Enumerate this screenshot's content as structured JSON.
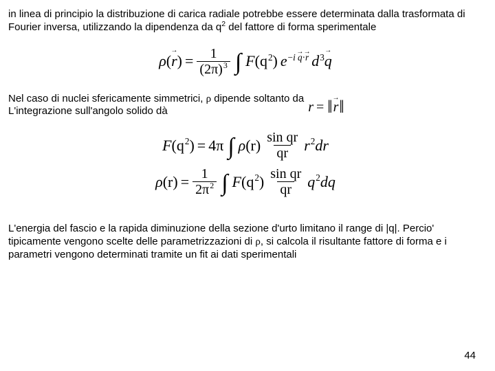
{
  "colors": {
    "background": "#ffffff",
    "text": "#000000"
  },
  "typography": {
    "body_family": "Arial",
    "body_size_pt": 11,
    "eq_family": "Times New Roman",
    "eq_size_pt": 16
  },
  "para1_a": "in linea di principio la distribuzione di carica radiale potrebbe essere determinata dalla trasformata di Fourier inversa, utilizzando la dipendenza da q",
  "para1_sup": "2",
  "para1_b": " del fattore di forma sperimentale",
  "eq1": {
    "lhs_rho": "ρ",
    "lhs_arg": "r",
    "frac_num": "1",
    "frac_den_base": "(2π)",
    "frac_den_exp": "3",
    "int": "∫",
    "F": "F",
    "F_arg_base": "(q",
    "F_arg_exp": "2",
    "F_arg_close": ")",
    "e": "e",
    "e_exp": "−i q·r",
    "d3": "d",
    "d3_exp": "3",
    "d3_var": "q"
  },
  "para2_a": "Nel caso di nuclei sfericamente simmetrici, ",
  "rho_sym": "ρ",
  "para2_b": " dipende soltanto da",
  "para2_line2": "L'integrazione sull'angolo solido dà",
  "norm": {
    "r": "r",
    "eq": "=",
    "bar": "‖",
    "rvec": "r"
  },
  "eq2": {
    "lhs_F": "F",
    "lhs_arg_base": "(q",
    "lhs_arg_exp": "2",
    "lhs_arg_close": ")",
    "eq": "=",
    "fourpi": "4π",
    "int": "∫",
    "rho": "ρ",
    "rho_arg": "(r)",
    "frac_num": "sin qr",
    "frac_den": "qr",
    "tail_base": "r",
    "tail_exp": "2",
    "tail_dr": "dr"
  },
  "eq3": {
    "lhs_rho": "ρ",
    "lhs_arg": "(r)",
    "eq": "=",
    "frac1_num": "1",
    "frac1_den_base": "2π",
    "frac1_den_exp": "2",
    "int": "∫",
    "F": "F",
    "F_arg_base": "(q",
    "F_arg_exp": "2",
    "F_arg_close": ")",
    "frac2_num": "sin qr",
    "frac2_den": "qr",
    "tail_base": "q",
    "tail_exp": "2",
    "tail_dq": "dq"
  },
  "para3_a": "L'energia del fascio e la rapida diminuzione della sezione d'urto limitano il range di |q|. Percio' tipicamente vengono scelte delle parametrizzazioni di ",
  "para3_b": ", si calcola il risultante fattore di forma e i parametri vengono determinati tramite un fit ai dati sperimentali",
  "page_number": "44"
}
